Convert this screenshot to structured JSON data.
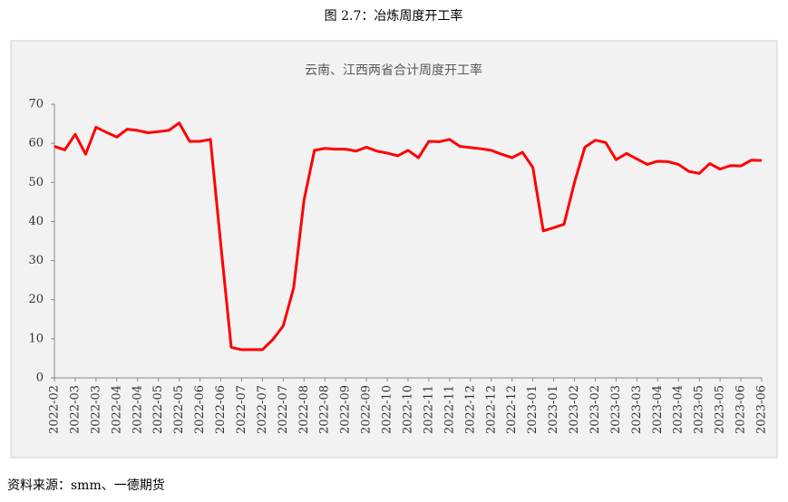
{
  "caption": "图 2.7：冶炼周度开工率",
  "chart_data": {
    "type": "line",
    "title": "云南、江西两省合计周度开工率",
    "categories": [
      "2022-02",
      null,
      "2022-03",
      null,
      "2022-03",
      null,
      "2022-04",
      null,
      "2022-04",
      null,
      "2022-05",
      null,
      "2022-05",
      null,
      "2022-06",
      null,
      "2022-06",
      null,
      "2022-07",
      null,
      "2022-07",
      null,
      "2022-07",
      null,
      "2022-08",
      null,
      "2022-08",
      null,
      "2022-09",
      null,
      "2022-09",
      null,
      "2022-10",
      null,
      "2022-10",
      null,
      "2022-11",
      null,
      "2022-11",
      null,
      "2022-12",
      null,
      "2022-12",
      null,
      "2022-12",
      null,
      "2023-01",
      null,
      "2023-01",
      null,
      "2023-02",
      null,
      "2023-02",
      null,
      "2023-03",
      null,
      "2023-03",
      null,
      "2023-04",
      null,
      "2023-04",
      null,
      "2023-05",
      null,
      "2023-05",
      null,
      "2023-06",
      null,
      "2023-06"
    ],
    "series": [
      {
        "name": "云南、江西两省合计周度开工率",
        "color": "#ff0000",
        "values": [
          59.2,
          58.3,
          62.3,
          57.2,
          64.1,
          62.8,
          61.6,
          63.6,
          63.3,
          62.7,
          63.0,
          63.3,
          65.2,
          60.5,
          60.5,
          61.0,
          34.0,
          7.8,
          7.2,
          7.2,
          7.2,
          9.8,
          13.3,
          23.0,
          45.5,
          58.2,
          58.7,
          58.5,
          58.5,
          58.0,
          59.0,
          58.0,
          57.5,
          56.8,
          58.2,
          56.3,
          60.5,
          60.4,
          61.0,
          59.2,
          58.9,
          58.6,
          58.2,
          57.2,
          56.3,
          57.7,
          53.8,
          37.6,
          38.4,
          39.3,
          50.0,
          59.0,
          60.8,
          60.2,
          55.8,
          57.4,
          56.0,
          54.6,
          55.4,
          55.3,
          54.6,
          52.8,
          52.3,
          54.8,
          53.4,
          54.3,
          54.2,
          55.7,
          55.6
        ]
      }
    ],
    "ylim": [
      0,
      70
    ],
    "yticks": [
      0,
      10,
      20,
      30,
      40,
      50,
      60,
      70
    ]
  },
  "source": "资料来源：smm、一德期货"
}
